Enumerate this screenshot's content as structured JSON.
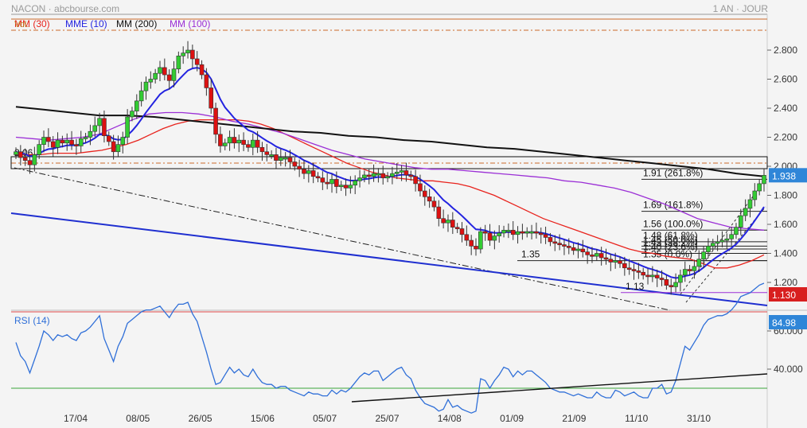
{
  "header": {
    "ticker": "NACON",
    "source": "abcbourse.com",
    "period": "1 AN · JOUR"
  },
  "legend": [
    {
      "label": "MM (30)",
      "color": "#e8231d"
    },
    {
      "label": "MME (10)",
      "color": "#2323e0"
    },
    {
      "label": "MM (200)",
      "color": "#111111"
    },
    {
      "label": "MM (100)",
      "color": "#9b2fd6"
    }
  ],
  "legend_overlap_text": "Vol.",
  "rsi_label": "RSI (14)",
  "price_badge": "1.938",
  "low_badge": "1.130",
  "rsi_badge": "84.98",
  "colors": {
    "up": "#33cc33",
    "down": "#dd1111",
    "grid": "#d8d8d8",
    "badge_blue": "#2f86d8",
    "badge_red": "#d81f1f"
  },
  "chart_data": [
    {
      "type": "candlestick",
      "title": "NACON",
      "x_tick_labels": [
        "17/04",
        "08/05",
        "26/05",
        "15/06",
        "05/07",
        "25/07",
        "14/08",
        "01/09",
        "21/09",
        "11/10",
        "31/10"
      ],
      "y_tick_labels": [
        "1.200",
        "1.400",
        "1.600",
        "1.800",
        "2.000",
        "2.200",
        "2.400",
        "2.600",
        "2.800"
      ],
      "ylim": [
        1.06,
        2.95
      ],
      "closes": [
        2.1,
        2.06,
        2.04,
        2.01,
        2.08,
        2.15,
        2.2,
        2.17,
        2.13,
        2.18,
        2.16,
        2.18,
        2.15,
        2.14,
        2.19,
        2.2,
        2.24,
        2.28,
        2.33,
        2.21,
        2.17,
        2.1,
        2.15,
        2.2,
        2.34,
        2.38,
        2.45,
        2.52,
        2.58,
        2.6,
        2.64,
        2.68,
        2.63,
        2.59,
        2.67,
        2.76,
        2.78,
        2.8,
        2.74,
        2.7,
        2.63,
        2.54,
        2.4,
        2.22,
        2.14,
        2.16,
        2.2,
        2.16,
        2.18,
        2.15,
        2.13,
        2.18,
        2.13,
        2.1,
        2.08,
        2.08,
        2.04,
        2.06,
        2.06,
        2.03,
        2.0,
        1.98,
        1.95,
        1.97,
        1.93,
        1.92,
        1.89,
        1.88,
        1.91,
        1.86,
        1.87,
        1.85,
        1.87,
        1.9,
        1.92,
        1.94,
        1.93,
        1.95,
        1.95,
        1.92,
        1.93,
        1.95,
        1.96,
        1.97,
        1.94,
        1.93,
        1.88,
        1.83,
        1.79,
        1.76,
        1.72,
        1.64,
        1.61,
        1.63,
        1.58,
        1.57,
        1.53,
        1.49,
        1.45,
        1.43,
        1.55,
        1.54,
        1.49,
        1.52,
        1.54,
        1.56,
        1.56,
        1.53,
        1.55,
        1.54,
        1.55,
        1.55,
        1.54,
        1.53,
        1.51,
        1.48,
        1.47,
        1.46,
        1.45,
        1.44,
        1.42,
        1.43,
        1.41,
        1.39,
        1.38,
        1.4,
        1.37,
        1.36,
        1.34,
        1.35,
        1.33,
        1.3,
        1.29,
        1.28,
        1.27,
        1.25,
        1.24,
        1.25,
        1.23,
        1.22,
        1.18,
        1.17,
        1.2,
        1.25,
        1.29,
        1.28,
        1.31,
        1.36,
        1.41,
        1.45,
        1.47,
        1.48,
        1.49,
        1.5,
        1.53,
        1.58,
        1.66,
        1.71,
        1.77,
        1.83,
        1.88,
        1.938
      ],
      "indicator_lines": [
        {
          "name": "MM (30)",
          "values": [
            2.08,
            2.08,
            2.08,
            2.09,
            2.09,
            2.09,
            2.1,
            2.11,
            2.13,
            2.15,
            2.18,
            2.22,
            2.26,
            2.29,
            2.31,
            2.32,
            2.32,
            2.32,
            2.32,
            2.31,
            2.29,
            2.26,
            2.22,
            2.18,
            2.14,
            2.1,
            2.06,
            2.02,
            1.99,
            1.96,
            1.94,
            1.92,
            1.91,
            1.9,
            1.9,
            1.89,
            1.88,
            1.86,
            1.83,
            1.8,
            1.76,
            1.72,
            1.68,
            1.64,
            1.61,
            1.58,
            1.55,
            1.52,
            1.49,
            1.46,
            1.43,
            1.41,
            1.4,
            1.38,
            1.37,
            1.36,
            1.33,
            1.3,
            1.3,
            1.32,
            1.35,
            1.39
          ]
        },
        {
          "name": "MM (100)",
          "values": [
            2.2,
            2.19,
            2.18,
            2.19,
            2.2,
            2.22,
            2.27,
            2.32,
            2.36,
            2.37,
            2.37,
            2.36,
            2.34,
            2.31,
            2.29,
            2.26,
            2.23,
            2.19,
            2.15,
            2.11,
            2.08,
            2.05,
            2.03,
            2.01,
            1.99,
            1.98,
            1.98,
            1.97,
            1.96,
            1.95,
            1.94,
            1.93,
            1.92,
            1.9,
            1.89,
            1.87,
            1.85,
            1.82,
            1.78,
            1.74,
            1.69,
            1.64,
            1.61,
            1.58,
            1.57,
            1.56
          ]
        },
        {
          "name": "MM (200)",
          "values": [
            2.41,
            2.39,
            2.37,
            2.35,
            2.35,
            2.34,
            2.32,
            2.3,
            2.28,
            2.26,
            2.24,
            2.23,
            2.21,
            2.2,
            2.18,
            2.17,
            2.15,
            2.13,
            2.12,
            2.1,
            2.08,
            2.06,
            2.04,
            2.02,
            2.0,
            1.98,
            1.95,
            1.93
          ]
        }
      ]
    },
    {
      "type": "line",
      "title": "RSI (14)",
      "y_tick_labels": [
        "40.000",
        "60.000"
      ],
      "ylim": [
        17,
        88
      ],
      "reference_levels": [
        70,
        30
      ],
      "values": [
        54,
        47,
        44,
        38,
        45,
        52,
        60,
        58,
        55,
        58,
        57,
        58,
        56,
        55,
        59,
        60,
        62,
        65,
        68,
        56,
        50,
        44,
        52,
        57,
        64,
        66,
        68,
        70,
        71,
        71,
        72,
        73,
        70,
        67,
        71,
        74,
        74,
        75,
        69,
        65,
        57,
        49,
        40,
        32,
        33,
        37,
        41,
        38,
        40,
        37,
        36,
        40,
        36,
        33,
        32,
        32,
        30,
        31,
        31,
        29,
        28,
        27,
        26,
        28,
        27,
        27,
        26,
        26,
        29,
        27,
        29,
        28,
        30,
        33,
        36,
        38,
        37,
        39,
        39,
        34,
        36,
        38,
        40,
        41,
        37,
        35,
        29,
        25,
        22,
        21,
        20,
        18,
        19,
        24,
        20,
        21,
        19,
        18,
        17,
        18,
        35,
        34,
        30,
        34,
        37,
        41,
        40,
        36,
        39,
        37,
        39,
        39,
        37,
        35,
        33,
        30,
        29,
        28,
        28,
        27,
        26,
        27,
        26,
        25,
        25,
        28,
        26,
        25,
        25,
        29,
        28,
        26,
        27,
        28,
        26,
        25,
        25,
        30,
        30,
        32,
        27,
        28,
        34,
        43,
        52,
        50,
        54,
        58,
        63,
        66,
        67,
        68,
        68,
        69,
        71,
        74,
        78,
        79,
        80,
        82,
        84,
        84.98
      ]
    }
  ],
  "fibonacci": [
    {
      "label": "1.91  (261.8%)",
      "price": 1.91
    },
    {
      "label": "1.69  (161.8%)",
      "price": 1.69
    },
    {
      "label": "1.56  (100.0%)",
      "price": 1.56
    },
    {
      "label": "1.48  (61.8%)",
      "price": 1.48
    },
    {
      "label": "1.45  (50.0%)",
      "price": 1.45
    },
    {
      "label": "1.43  (38.2%)",
      "price": 1.43
    },
    {
      "label": "1.40  (23.6%)",
      "price": 1.4
    },
    {
      "label": "1.35  (0.0%)",
      "price": 1.35
    }
  ],
  "annotations": [
    {
      "label": "2.06",
      "price": 2.06
    },
    {
      "label": "1.35",
      "price": 1.35
    },
    {
      "label": "1.13",
      "price": 1.13
    }
  ]
}
